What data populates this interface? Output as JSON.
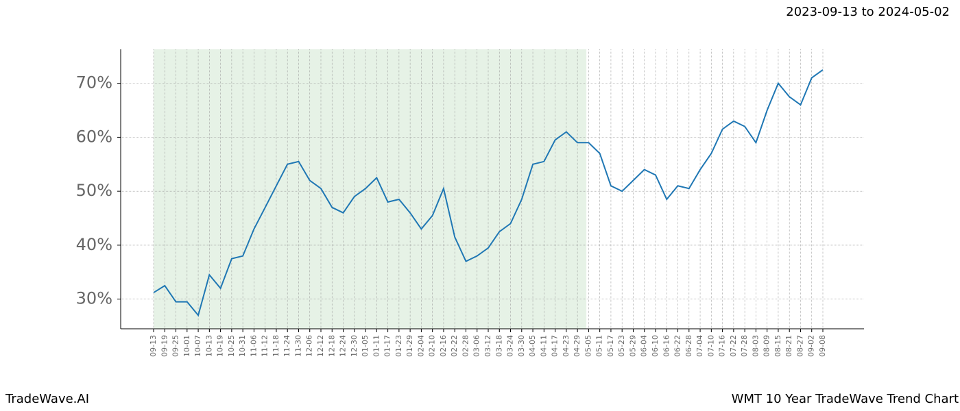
{
  "chart_data": {
    "type": "line",
    "title": "2023-09-13 to 2024-05-02",
    "footer_left": "TradeWave.AI",
    "footer_right": "WMT 10 Year TradeWave Trend Chart",
    "categories": [
      "09-13",
      "09-19",
      "09-25",
      "10-01",
      "10-07",
      "10-13",
      "10-19",
      "10-25",
      "10-31",
      "11-06",
      "11-12",
      "11-18",
      "11-24",
      "11-30",
      "12-06",
      "12-12",
      "12-18",
      "12-24",
      "12-30",
      "01-05",
      "01-11",
      "01-17",
      "01-23",
      "01-29",
      "02-04",
      "02-10",
      "02-16",
      "02-22",
      "02-28",
      "03-06",
      "03-12",
      "03-18",
      "03-24",
      "03-30",
      "04-05",
      "04-11",
      "04-17",
      "04-23",
      "04-29",
      "05-05",
      "05-11",
      "05-17",
      "05-23",
      "05-29",
      "06-04",
      "06-10",
      "06-16",
      "06-22",
      "06-28",
      "07-04",
      "07-10",
      "07-16",
      "07-22",
      "07-28",
      "08-03",
      "08-09",
      "08-15",
      "08-21",
      "08-27",
      "09-02",
      "09-08"
    ],
    "values": [
      31.2,
      32.5,
      29.5,
      29.5,
      27.0,
      34.5,
      32,
      37.5,
      38,
      43,
      47,
      51,
      55,
      55.5,
      52,
      50.5,
      47,
      46,
      49,
      50.5,
      52.5,
      48,
      48.5,
      46,
      43,
      45.5,
      50.5,
      41.5,
      37,
      38,
      39.5,
      42.5,
      44,
      48.5,
      55,
      55.5,
      59.5,
      61,
      59,
      59,
      57,
      51,
      50,
      52,
      54,
      53,
      48.5,
      51,
      50.5,
      54,
      57,
      61.5,
      63,
      62,
      59,
      65,
      70,
      67.5,
      66,
      71,
      72.5
    ],
    "color": "#1f77b4",
    "ylim": [
      24.5,
      76.3
    ],
    "yticks": [
      {
        "value": 30,
        "label": "30%"
      },
      {
        "value": 40,
        "label": "40%"
      },
      {
        "value": 50,
        "label": "50%"
      },
      {
        "value": 60,
        "label": "60%"
      },
      {
        "value": 70,
        "label": "70%"
      }
    ],
    "grid": true
  }
}
